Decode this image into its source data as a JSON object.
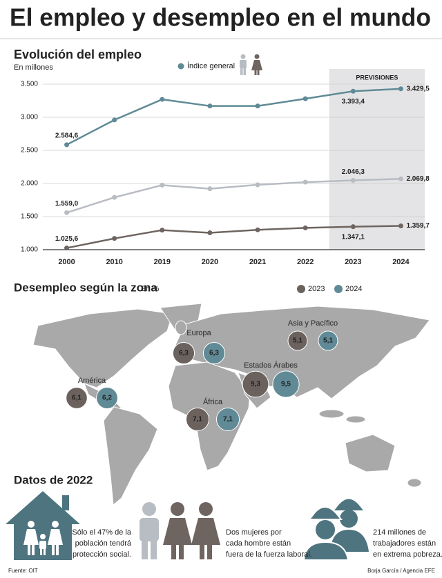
{
  "title": "El empleo y desempleo en el mundo",
  "chart_data": [
    {
      "type": "line",
      "title": "Evolución del empleo",
      "subtitle": "En millones",
      "categories": [
        "2000",
        "2010",
        "2019",
        "2020",
        "2021",
        "2022",
        "2023",
        "2024"
      ],
      "series": [
        {
          "name": "Índice general",
          "color": "#5f8a96",
          "values": [
            2584.6,
            2960,
            3270,
            3170,
            3170,
            3280,
            3393.4,
            3429.5
          ],
          "value_labels": [
            "2.584,6",
            null,
            null,
            null,
            null,
            null,
            "3.393,4",
            "3.429,5"
          ]
        },
        {
          "color": "#b8bcc3",
          "values": [
            1559.0,
            1790,
            1975,
            1920,
            1980,
            2020,
            2046.3,
            2069.8
          ],
          "value_labels": [
            "1.559,0",
            null,
            null,
            null,
            null,
            null,
            "2.046,3",
            "2.069,8"
          ]
        },
        {
          "color": "#6e6560",
          "values": [
            1025.6,
            1170,
            1295,
            1255,
            1300,
            1330,
            1347.1,
            1359.7
          ],
          "value_labels": [
            "1.025,6",
            null,
            null,
            null,
            null,
            null,
            "1.347,1",
            "1.359,7"
          ]
        }
      ],
      "ylim": [
        1000,
        3500
      ],
      "yticks": [
        {
          "value": 1000,
          "label": "1.000"
        },
        {
          "value": 1500,
          "label": "1.500"
        },
        {
          "value": 2000,
          "label": "2.000"
        },
        {
          "value": 2500,
          "label": "2.500"
        },
        {
          "value": 3000,
          "label": "3.000"
        },
        {
          "value": 3500,
          "label": "3.500"
        }
      ],
      "grid": true,
      "forecast": {
        "label": "PREVISIONES",
        "from": "2023"
      }
    },
    {
      "type": "bubble",
      "title": "Desempleo según la zona",
      "subtitle": "En %",
      "categories": [
        "América",
        "Europa",
        "Asia y Pacífico",
        "Estados Árabes",
        "África"
      ],
      "series": [
        {
          "name": "2023",
          "color": "#6b625d",
          "values": [
            6.1,
            6.3,
            5.1,
            9.3,
            7.1
          ],
          "value_labels": [
            "6,1",
            "6,3",
            "5,1",
            "9,3",
            "7,1"
          ]
        },
        {
          "name": "2024",
          "color": "#5f8a96",
          "values": [
            6.2,
            6.3,
            5.1,
            9.5,
            7.1
          ],
          "value_labels": [
            "6,2",
            "6,3",
            "5,1",
            "9,5",
            "7,1"
          ]
        }
      ]
    }
  ],
  "facts": {
    "title": "Datos de 2022",
    "items": [
      {
        "lines": [
          "Sólo el 47% de la",
          "población tendrá",
          "protección social."
        ]
      },
      {
        "lines": [
          "Dos mujeres por",
          "cada hombre están",
          "fuera de la fuerza laboral."
        ]
      },
      {
        "lines": [
          "214 millones de",
          "trabajadores están",
          "en extrema pobreza."
        ]
      }
    ]
  },
  "source": "Fuente: OIT",
  "credit": "Borja García / Agencia EFE"
}
